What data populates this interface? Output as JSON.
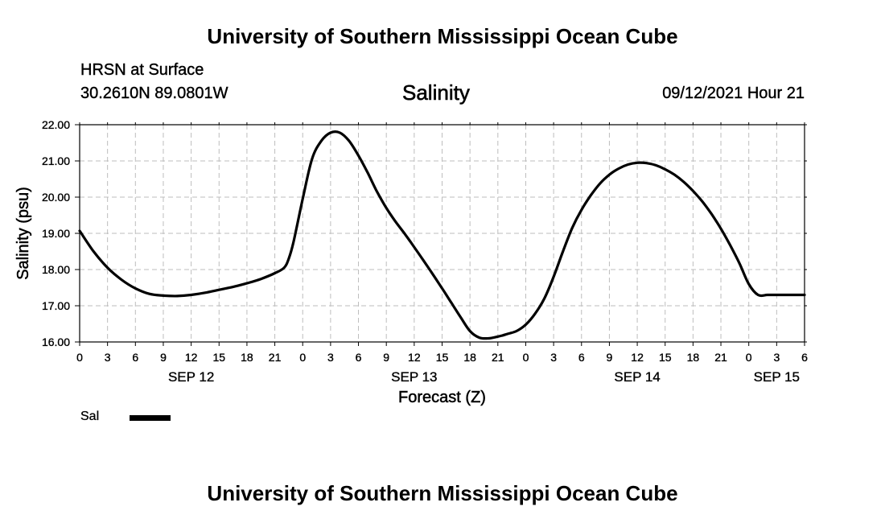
{
  "header": {
    "title": "University of Southern Mississippi Ocean Cube",
    "station": "HRSN at Surface",
    "coords": "30.2610N  89.0801W",
    "datetime": "09/12/2021 Hour 21",
    "footer_title": "University of Southern Mississippi Ocean Cube"
  },
  "chart_data": {
    "type": "line",
    "title": "Salinity",
    "xlabel": "Forecast (Z)",
    "ylabel": "Salinity (psu)",
    "xlim": [
      0,
      78
    ],
    "ylim": [
      16.0,
      22.0
    ],
    "grid": true,
    "x_units": "forecast hours from SEP 12 00Z",
    "x_tick_labels": [
      "0",
      "3",
      "6",
      "9",
      "12",
      "15",
      "18",
      "21",
      "0",
      "3",
      "6",
      "9",
      "12",
      "15",
      "18",
      "21",
      "0",
      "3",
      "6",
      "9",
      "12",
      "15",
      "18",
      "21",
      "0",
      "3",
      "6"
    ],
    "y_ticks": [
      16.0,
      17.0,
      18.0,
      19.0,
      20.0,
      21.0,
      22.0
    ],
    "y_tick_labels": [
      "16.00",
      "17.00",
      "18.00",
      "19.00",
      "20.00",
      "21.00",
      "22.00"
    ],
    "day_labels": [
      {
        "text": "SEP 12",
        "hour": 12
      },
      {
        "text": "SEP 13",
        "hour": 36
      },
      {
        "text": "SEP 14",
        "hour": 60
      },
      {
        "text": "SEP 15",
        "hour": 75
      }
    ],
    "series": [
      {
        "name": "Sal",
        "color": "#000000",
        "x": [
          0,
          1.5,
          3,
          4.5,
          6,
          7.5,
          9,
          10.5,
          12,
          13.5,
          15,
          16.5,
          18,
          19.5,
          21,
          22,
          22.5,
          23,
          24,
          25,
          26,
          27,
          28,
          29,
          30,
          31,
          32,
          33,
          34,
          35,
          36,
          37,
          38,
          39,
          40,
          41,
          42,
          43,
          44,
          45,
          45.5,
          46,
          47,
          48,
          49,
          50,
          51,
          52,
          53,
          54,
          55,
          56,
          57,
          58,
          59,
          60,
          61,
          62,
          63,
          64,
          65,
          66,
          67,
          68,
          69,
          70,
          71,
          72,
          73,
          74,
          75,
          76,
          77,
          78
        ],
        "values": [
          19.07,
          18.5,
          18.05,
          17.72,
          17.48,
          17.33,
          17.28,
          17.27,
          17.3,
          17.36,
          17.44,
          17.52,
          17.62,
          17.74,
          17.9,
          18.05,
          18.3,
          18.75,
          19.95,
          21.05,
          21.55,
          21.78,
          21.78,
          21.55,
          21.15,
          20.67,
          20.15,
          19.7,
          19.32,
          18.98,
          18.62,
          18.25,
          17.87,
          17.48,
          17.08,
          16.68,
          16.3,
          16.12,
          16.1,
          16.15,
          16.18,
          16.22,
          16.3,
          16.48,
          16.78,
          17.2,
          17.8,
          18.5,
          19.15,
          19.65,
          20.05,
          20.38,
          20.62,
          20.79,
          20.9,
          20.95,
          20.94,
          20.88,
          20.77,
          20.62,
          20.42,
          20.17,
          19.88,
          19.53,
          19.13,
          18.67,
          18.17,
          17.6,
          17.3,
          17.3,
          17.3,
          17.3,
          17.3,
          17.3
        ]
      }
    ],
    "legend": [
      {
        "label": "Sal"
      }
    ]
  }
}
